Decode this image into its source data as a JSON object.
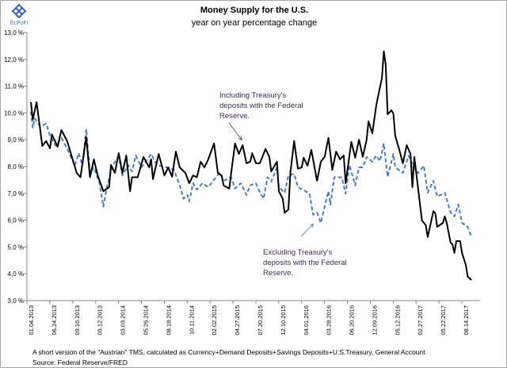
{
  "logo": {
    "text": "EcPoFi"
  },
  "chart_data": {
    "type": "line",
    "title": "Money Supply for the U.S.",
    "subtitle": "year on year percentage change",
    "xlabel": "",
    "ylabel": "",
    "ylim": [
      3.0,
      13.0
    ],
    "xlim": [
      "2013-04-01",
      "2017-09-11"
    ],
    "grid": false,
    "legend": "none",
    "y_ticks": [
      "3,0 %",
      "4,0 %",
      "5,0 %",
      "6,0 %",
      "7,0 %",
      "8,0 %",
      "9,0 %",
      "10,0 %",
      "11,0 %",
      "12,0 %",
      "13,0 %"
    ],
    "x_tick_labels": [
      "01.04.2013",
      "06.24.2013",
      "09.16.2013",
      "09.12.2013",
      "03.03.2014",
      "05.26.2014",
      "08.18.2014",
      "10.11.2014",
      "02.02.2015",
      "04.27.2015",
      "07.20.2015",
      "12.10.2015",
      "04.01.2016",
      "03.28.2016",
      "06.20.2016",
      "12.09.2016",
      "05.12.2016",
      "02.27.2017",
      "05.22.2017",
      "08.14.2017"
    ],
    "series": [
      {
        "color": "#000000",
        "style": "solid",
        "points": [
          [
            "2013-04-01",
            10.4
          ],
          [
            "2013-04-08",
            9.75
          ],
          [
            "2013-04-22",
            10.4
          ],
          [
            "2013-05-13",
            8.77
          ],
          [
            "2013-05-27",
            8.95
          ],
          [
            "2013-06-10",
            8.68
          ],
          [
            "2013-06-17",
            9.2
          ],
          [
            "2013-07-08",
            8.74
          ],
          [
            "2013-07-22",
            9.36
          ],
          [
            "2013-08-12",
            8.95
          ],
          [
            "2013-09-16",
            7.76
          ],
          [
            "2013-09-30",
            7.6
          ],
          [
            "2013-10-21",
            9.1
          ],
          [
            "2013-11-04",
            7.6
          ],
          [
            "2013-11-18",
            8.27
          ],
          [
            "2013-12-02",
            7.67
          ],
          [
            "2013-12-23",
            7.08
          ],
          [
            "2014-01-13",
            7.23
          ],
          [
            "2014-01-20",
            8.06
          ],
          [
            "2014-02-03",
            7.76
          ],
          [
            "2014-02-17",
            8.5
          ],
          [
            "2014-03-03",
            7.76
          ],
          [
            "2014-03-17",
            8.41
          ],
          [
            "2014-03-31",
            7.08
          ],
          [
            "2014-04-07",
            7.6
          ],
          [
            "2014-04-28",
            7.6
          ],
          [
            "2014-05-19",
            8.36
          ],
          [
            "2014-06-09",
            7.97
          ],
          [
            "2014-06-16",
            8.27
          ],
          [
            "2014-06-23",
            7.53
          ],
          [
            "2014-07-14",
            8.47
          ],
          [
            "2014-08-04",
            7.67
          ],
          [
            "2014-08-18",
            7.97
          ],
          [
            "2014-09-01",
            7.62
          ],
          [
            "2014-09-15",
            8.56
          ],
          [
            "2014-09-29",
            7.97
          ],
          [
            "2014-10-20",
            7.76
          ],
          [
            "2014-11-03",
            7.38
          ],
          [
            "2014-11-17",
            7.67
          ],
          [
            "2014-12-01",
            7.6
          ],
          [
            "2014-12-15",
            8.18
          ],
          [
            "2014-12-29",
            7.97
          ],
          [
            "2015-01-12",
            8.27
          ],
          [
            "2015-02-02",
            8.86
          ],
          [
            "2015-02-16",
            7.76
          ],
          [
            "2015-03-02",
            7.67
          ],
          [
            "2015-03-09",
            7.3
          ],
          [
            "2015-03-30",
            7.18
          ],
          [
            "2015-04-06",
            7.76
          ],
          [
            "2015-04-20",
            8.86
          ],
          [
            "2015-05-04",
            8.47
          ],
          [
            "2015-05-18",
            8.8
          ],
          [
            "2015-06-01",
            8.12
          ],
          [
            "2015-06-15",
            8.18
          ],
          [
            "2015-06-22",
            8.5
          ],
          [
            "2015-07-06",
            8.12
          ],
          [
            "2015-07-20",
            8.12
          ],
          [
            "2015-08-10",
            8.66
          ],
          [
            "2015-08-24",
            8.36
          ],
          [
            "2015-08-31",
            7.82
          ],
          [
            "2015-09-21",
            8.18
          ],
          [
            "2015-09-28",
            7.08
          ],
          [
            "2015-10-12",
            6.8
          ],
          [
            "2015-10-19",
            6.28
          ],
          [
            "2015-11-02",
            6.4
          ],
          [
            "2015-11-09",
            7.76
          ],
          [
            "2015-11-23",
            8.95
          ],
          [
            "2015-12-07",
            7.92
          ],
          [
            "2015-12-21",
            7.97
          ],
          [
            "2015-12-28",
            8.33
          ],
          [
            "2016-01-11",
            8.03
          ],
          [
            "2016-01-25",
            8.62
          ],
          [
            "2016-02-15",
            7.47
          ],
          [
            "2016-02-29",
            8.18
          ],
          [
            "2016-03-14",
            8.36
          ],
          [
            "2016-03-28",
            9.07
          ],
          [
            "2016-04-11",
            7.88
          ],
          [
            "2016-04-25",
            8.56
          ],
          [
            "2016-05-09",
            8.27
          ],
          [
            "2016-05-23",
            8.41
          ],
          [
            "2016-05-30",
            7.38
          ],
          [
            "2016-06-20",
            8.92
          ],
          [
            "2016-07-04",
            8.33
          ],
          [
            "2016-07-18",
            9.0
          ],
          [
            "2016-08-01",
            8.36
          ],
          [
            "2016-08-15",
            9.0
          ],
          [
            "2016-08-22",
            9.69
          ],
          [
            "2016-09-05",
            9.24
          ],
          [
            "2016-09-19",
            10.25
          ],
          [
            "2016-09-26",
            10.63
          ],
          [
            "2016-10-10",
            11.3
          ],
          [
            "2016-10-17",
            12.3
          ],
          [
            "2016-10-24",
            11.8
          ],
          [
            "2016-10-31",
            9.95
          ],
          [
            "2016-11-14",
            10.1
          ],
          [
            "2016-11-21",
            9.98
          ],
          [
            "2016-11-28",
            9.15
          ],
          [
            "2016-12-12",
            8.66
          ],
          [
            "2016-12-26",
            8.12
          ],
          [
            "2017-01-09",
            8.8
          ],
          [
            "2017-01-23",
            8.47
          ],
          [
            "2017-01-30",
            7.23
          ],
          [
            "2017-02-06",
            8.36
          ],
          [
            "2017-02-20",
            7.18
          ],
          [
            "2017-03-06",
            5.99
          ],
          [
            "2017-03-20",
            5.81
          ],
          [
            "2017-03-27",
            5.37
          ],
          [
            "2017-04-17",
            6.34
          ],
          [
            "2017-04-24",
            6.25
          ],
          [
            "2017-05-01",
            5.75
          ],
          [
            "2017-05-22",
            5.9
          ],
          [
            "2017-05-29",
            6.14
          ],
          [
            "2017-06-05",
            5.9
          ],
          [
            "2017-06-19",
            5.16
          ],
          [
            "2017-06-26",
            5.1
          ],
          [
            "2017-07-03",
            4.78
          ],
          [
            "2017-07-10",
            5.22
          ],
          [
            "2017-07-24",
            5.22
          ],
          [
            "2017-07-31",
            4.78
          ],
          [
            "2017-08-14",
            4.33
          ],
          [
            "2017-08-21",
            3.89
          ],
          [
            "2017-09-04",
            3.77
          ]
        ]
      },
      {
        "color": "#4a7ebb",
        "style": "dashed",
        "points": [
          [
            "2013-04-01",
            10.05
          ],
          [
            "2013-04-08",
            9.45
          ],
          [
            "2013-04-15",
            9.8
          ],
          [
            "2013-05-06",
            9.5
          ],
          [
            "2013-05-27",
            9.6
          ],
          [
            "2013-06-10",
            9.15
          ],
          [
            "2013-07-01",
            8.77
          ],
          [
            "2013-07-22",
            9.07
          ],
          [
            "2013-08-12",
            8.66
          ],
          [
            "2013-09-09",
            8.03
          ],
          [
            "2013-09-23",
            8.5
          ],
          [
            "2013-10-07",
            8.06
          ],
          [
            "2013-10-21",
            9.4
          ],
          [
            "2013-11-04",
            7.76
          ],
          [
            "2013-11-18",
            7.97
          ],
          [
            "2013-12-09",
            7.38
          ],
          [
            "2013-12-23",
            6.5
          ],
          [
            "2014-01-06",
            7.3
          ],
          [
            "2014-01-27",
            8.06
          ],
          [
            "2014-02-17",
            8.36
          ],
          [
            "2014-03-03",
            7.67
          ],
          [
            "2014-03-24",
            8.06
          ],
          [
            "2014-04-07",
            7.82
          ],
          [
            "2014-04-21",
            8.41
          ],
          [
            "2014-05-12",
            7.97
          ],
          [
            "2014-06-16",
            8.47
          ],
          [
            "2014-07-07",
            8.06
          ],
          [
            "2014-08-11",
            7.97
          ],
          [
            "2014-09-08",
            7.88
          ],
          [
            "2014-09-29",
            7.3
          ],
          [
            "2014-10-13",
            6.8
          ],
          [
            "2014-10-27",
            6.94
          ],
          [
            "2014-11-03",
            6.7
          ],
          [
            "2014-11-17",
            7.38
          ],
          [
            "2014-12-01",
            7.14
          ],
          [
            "2014-12-22",
            7.38
          ],
          [
            "2015-01-12",
            7.23
          ],
          [
            "2015-02-09",
            7.6
          ],
          [
            "2015-02-23",
            7.76
          ],
          [
            "2015-03-09",
            7.47
          ],
          [
            "2015-04-06",
            7.6
          ],
          [
            "2015-04-20",
            7.18
          ],
          [
            "2015-05-11",
            7.38
          ],
          [
            "2015-06-01",
            6.94
          ],
          [
            "2015-06-15",
            7.3
          ],
          [
            "2015-07-06",
            7.38
          ],
          [
            "2015-07-13",
            7.18
          ],
          [
            "2015-08-03",
            6.8
          ],
          [
            "2015-08-17",
            7.6
          ],
          [
            "2015-08-31",
            7.44
          ],
          [
            "2015-09-21",
            7.97
          ],
          [
            "2015-09-28",
            7.23
          ],
          [
            "2015-10-19",
            7.02
          ],
          [
            "2015-11-02",
            7.67
          ],
          [
            "2015-11-23",
            7.73
          ],
          [
            "2015-12-07",
            7.23
          ],
          [
            "2016-01-04",
            7.08
          ],
          [
            "2016-01-18",
            6.99
          ],
          [
            "2016-02-01",
            6.2
          ],
          [
            "2016-02-15",
            6.28
          ],
          [
            "2016-02-29",
            5.9
          ],
          [
            "2016-03-14",
            6.5
          ],
          [
            "2016-03-28",
            7.08
          ],
          [
            "2016-04-04",
            6.58
          ],
          [
            "2016-04-18",
            7.6
          ],
          [
            "2016-05-16",
            7.6
          ],
          [
            "2016-05-30",
            6.99
          ],
          [
            "2016-06-13",
            8.06
          ],
          [
            "2016-07-04",
            7.3
          ],
          [
            "2016-07-18",
            7.97
          ],
          [
            "2016-08-01",
            7.97
          ],
          [
            "2016-08-15",
            8.36
          ],
          [
            "2016-09-05",
            8.18
          ],
          [
            "2016-09-19",
            8.41
          ],
          [
            "2016-10-03",
            8.2
          ],
          [
            "2016-10-17",
            8.86
          ],
          [
            "2016-10-31",
            7.62
          ],
          [
            "2016-11-21",
            8.47
          ],
          [
            "2016-11-28",
            7.97
          ],
          [
            "2016-12-26",
            7.76
          ],
          [
            "2017-01-16",
            8.41
          ],
          [
            "2017-02-06",
            7.88
          ],
          [
            "2017-02-20",
            7.76
          ],
          [
            "2017-03-13",
            8.03
          ],
          [
            "2017-03-27",
            7.02
          ],
          [
            "2017-04-17",
            7.47
          ],
          [
            "2017-05-01",
            6.88
          ],
          [
            "2017-05-29",
            7.02
          ],
          [
            "2017-06-19",
            6.28
          ],
          [
            "2017-07-03",
            6.14
          ],
          [
            "2017-07-17",
            6.58
          ],
          [
            "2017-07-31",
            5.9
          ],
          [
            "2017-08-21",
            5.75
          ],
          [
            "2017-09-04",
            5.37
          ]
        ]
      }
    ],
    "annotations": [
      {
        "text_lines": [
          "Including Treasury's",
          "deposits with the Federal",
          "Reserve."
        ]
      },
      {
        "text_lines": [
          "Excluding Treasury's",
          "deposits with the Federal",
          "Reserve."
        ]
      }
    ]
  },
  "footnote": {
    "line1": "A short version of the \"Austrian\" TMS,  calculated as Currency+Demand Deposits+Savings Deposits+U.S.Treasury, General Account",
    "line2": "Source:  Federal Reserve/FRED"
  }
}
